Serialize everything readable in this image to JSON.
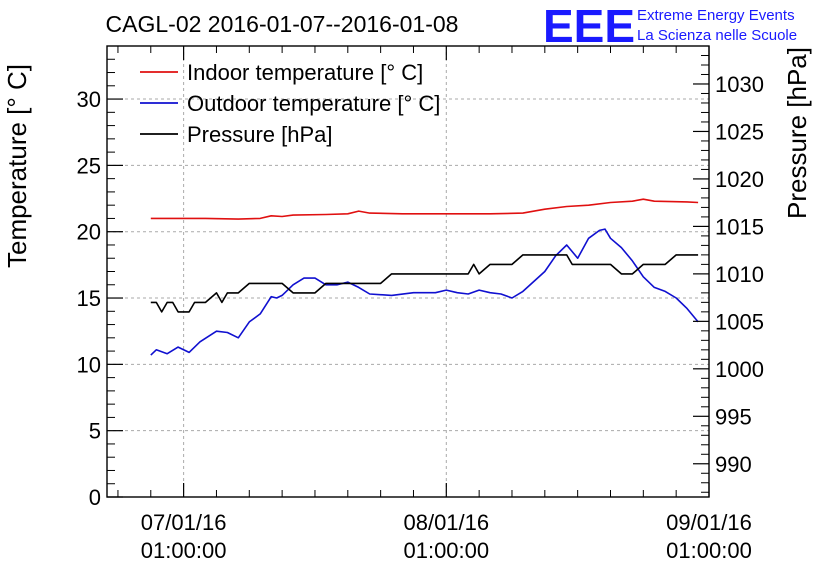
{
  "chart_data": {
    "type": "line",
    "title": "CAGL-02 2016-01-07--2016-01-08",
    "ylabel": "Temperature [° C]",
    "y2label": "Pressure [hPa]",
    "ylim": [
      0,
      34
    ],
    "y2lim": [
      986.5,
      1034
    ],
    "xlim": [
      "2016-01-06T18:00:00",
      "2016-01-09T01:00:00"
    ],
    "grid": true,
    "legend_position": "top-left",
    "y_ticks": [
      0,
      5,
      10,
      15,
      20,
      25,
      30
    ],
    "y2_ticks": [
      990,
      995,
      1000,
      1005,
      1010,
      1015,
      1020,
      1025,
      1030
    ],
    "x_ticks": [
      {
        "time": "2016-01-07T01:00:00",
        "date": "07/01/16",
        "clock": "01:00:00"
      },
      {
        "time": "2016-01-08T01:00:00",
        "date": "08/01/16",
        "clock": "01:00:00"
      },
      {
        "time": "2016-01-09T01:00:00",
        "date": "09/01/16",
        "clock": "01:00:00"
      }
    ],
    "series": [
      {
        "name": "Indoor temperature [° C]",
        "color": "#e01010",
        "axis": "left",
        "points": [
          [
            "2016-01-06T22:00:00",
            21.0
          ],
          [
            "2016-01-07T00:00:00",
            21.0
          ],
          [
            "2016-01-07T03:00:00",
            21.0
          ],
          [
            "2016-01-07T06:00:00",
            20.95
          ],
          [
            "2016-01-07T08:00:00",
            21.0
          ],
          [
            "2016-01-07T09:00:00",
            21.2
          ],
          [
            "2016-01-07T10:00:00",
            21.15
          ],
          [
            "2016-01-07T11:00:00",
            21.25
          ],
          [
            "2016-01-07T14:00:00",
            21.3
          ],
          [
            "2016-01-07T16:00:00",
            21.35
          ],
          [
            "2016-01-07T17:00:00",
            21.55
          ],
          [
            "2016-01-07T18:00:00",
            21.4
          ],
          [
            "2016-01-07T21:00:00",
            21.35
          ],
          [
            "2016-01-08T01:00:00",
            21.35
          ],
          [
            "2016-01-08T05:00:00",
            21.35
          ],
          [
            "2016-01-08T08:00:00",
            21.4
          ],
          [
            "2016-01-08T10:00:00",
            21.7
          ],
          [
            "2016-01-08T12:00:00",
            21.9
          ],
          [
            "2016-01-08T14:00:00",
            22.0
          ],
          [
            "2016-01-08T16:00:00",
            22.2
          ],
          [
            "2016-01-08T18:00:00",
            22.3
          ],
          [
            "2016-01-08T19:00:00",
            22.45
          ],
          [
            "2016-01-08T20:00:00",
            22.3
          ],
          [
            "2016-01-08T23:00:00",
            22.25
          ],
          [
            "2016-01-09T00:00:00",
            22.2
          ]
        ]
      },
      {
        "name": "Outdoor temperature [° C]",
        "color": "#1010d0",
        "axis": "left",
        "points": [
          [
            "2016-01-06T22:00:00",
            10.7
          ],
          [
            "2016-01-06T22:30:00",
            11.1
          ],
          [
            "2016-01-06T23:30:00",
            10.8
          ],
          [
            "2016-01-07T00:30:00",
            11.3
          ],
          [
            "2016-01-07T01:30:00",
            10.9
          ],
          [
            "2016-01-07T02:30:00",
            11.7
          ],
          [
            "2016-01-07T04:00:00",
            12.5
          ],
          [
            "2016-01-07T05:00:00",
            12.4
          ],
          [
            "2016-01-07T06:00:00",
            12.0
          ],
          [
            "2016-01-07T07:00:00",
            13.2
          ],
          [
            "2016-01-07T08:00:00",
            13.8
          ],
          [
            "2016-01-07T09:00:00",
            15.1
          ],
          [
            "2016-01-07T09:30:00",
            15.0
          ],
          [
            "2016-01-07T10:00:00",
            15.2
          ],
          [
            "2016-01-07T11:00:00",
            16.0
          ],
          [
            "2016-01-07T12:00:00",
            16.5
          ],
          [
            "2016-01-07T13:00:00",
            16.5
          ],
          [
            "2016-01-07T14:00:00",
            16.0
          ],
          [
            "2016-01-07T15:00:00",
            16.0
          ],
          [
            "2016-01-07T16:00:00",
            16.2
          ],
          [
            "2016-01-07T17:00:00",
            15.8
          ],
          [
            "2016-01-07T18:00:00",
            15.3
          ],
          [
            "2016-01-07T20:00:00",
            15.2
          ],
          [
            "2016-01-07T22:00:00",
            15.4
          ],
          [
            "2016-01-08T00:00:00",
            15.4
          ],
          [
            "2016-01-08T01:00:00",
            15.6
          ],
          [
            "2016-01-08T02:00:00",
            15.4
          ],
          [
            "2016-01-08T03:00:00",
            15.3
          ],
          [
            "2016-01-08T04:00:00",
            15.6
          ],
          [
            "2016-01-08T05:00:00",
            15.4
          ],
          [
            "2016-01-08T06:00:00",
            15.3
          ],
          [
            "2016-01-08T07:00:00",
            15.0
          ],
          [
            "2016-01-08T08:00:00",
            15.5
          ],
          [
            "2016-01-08T10:00:00",
            17.0
          ],
          [
            "2016-01-08T11:00:00",
            18.2
          ],
          [
            "2016-01-08T12:00:00",
            19.0
          ],
          [
            "2016-01-08T13:00:00",
            18.0
          ],
          [
            "2016-01-08T14:00:00",
            19.5
          ],
          [
            "2016-01-08T15:00:00",
            20.1
          ],
          [
            "2016-01-08T15:30:00",
            20.2
          ],
          [
            "2016-01-08T16:00:00",
            19.5
          ],
          [
            "2016-01-08T17:00:00",
            18.8
          ],
          [
            "2016-01-08T18:00:00",
            17.8
          ],
          [
            "2016-01-08T19:00:00",
            16.6
          ],
          [
            "2016-01-08T20:00:00",
            15.8
          ],
          [
            "2016-01-08T21:00:00",
            15.5
          ],
          [
            "2016-01-08T22:00:00",
            15.0
          ],
          [
            "2016-01-08T23:00:00",
            14.2
          ],
          [
            "2016-01-09T00:00:00",
            13.2
          ]
        ]
      },
      {
        "name": "Pressure [hPa]",
        "color": "#000000",
        "axis": "right",
        "points": [
          [
            "2016-01-06T22:00:00",
            1007
          ],
          [
            "2016-01-06T22:30:00",
            1007
          ],
          [
            "2016-01-06T23:00:00",
            1006
          ],
          [
            "2016-01-06T23:30:00",
            1007
          ],
          [
            "2016-01-07T00:00:00",
            1007
          ],
          [
            "2016-01-07T00:30:00",
            1006
          ],
          [
            "2016-01-07T01:30:00",
            1006
          ],
          [
            "2016-01-07T02:00:00",
            1007
          ],
          [
            "2016-01-07T03:00:00",
            1007
          ],
          [
            "2016-01-07T03:30:00",
            1007.5
          ],
          [
            "2016-01-07T04:00:00",
            1008
          ],
          [
            "2016-01-07T04:30:00",
            1007
          ],
          [
            "2016-01-07T05:00:00",
            1008
          ],
          [
            "2016-01-07T06:00:00",
            1008
          ],
          [
            "2016-01-07T06:30:00",
            1008.5
          ],
          [
            "2016-01-07T07:00:00",
            1009
          ],
          [
            "2016-01-07T08:00:00",
            1009
          ],
          [
            "2016-01-07T10:00:00",
            1009
          ],
          [
            "2016-01-07T11:00:00",
            1008
          ],
          [
            "2016-01-07T13:00:00",
            1008
          ],
          [
            "2016-01-07T14:00:00",
            1009
          ],
          [
            "2016-01-07T19:00:00",
            1009
          ],
          [
            "2016-01-07T20:00:00",
            1010
          ],
          [
            "2016-01-08T03:00:00",
            1010
          ],
          [
            "2016-01-08T03:30:00",
            1011
          ],
          [
            "2016-01-08T04:00:00",
            1010
          ],
          [
            "2016-01-08T05:00:00",
            1011
          ],
          [
            "2016-01-08T07:00:00",
            1011
          ],
          [
            "2016-01-08T08:00:00",
            1012
          ],
          [
            "2016-01-08T12:00:00",
            1012
          ],
          [
            "2016-01-08T12:30:00",
            1011
          ],
          [
            "2016-01-08T16:00:00",
            1011
          ],
          [
            "2016-01-08T17:00:00",
            1010
          ],
          [
            "2016-01-08T18:00:00",
            1010
          ],
          [
            "2016-01-08T19:00:00",
            1011
          ],
          [
            "2016-01-08T21:00:00",
            1011
          ],
          [
            "2016-01-08T22:00:00",
            1012
          ],
          [
            "2016-01-09T00:00:00",
            1012
          ]
        ]
      }
    ]
  },
  "logo": {
    "mark": "EEE",
    "line1": "Extreme Energy Events",
    "line2": "La Scienza nelle Scuole"
  }
}
